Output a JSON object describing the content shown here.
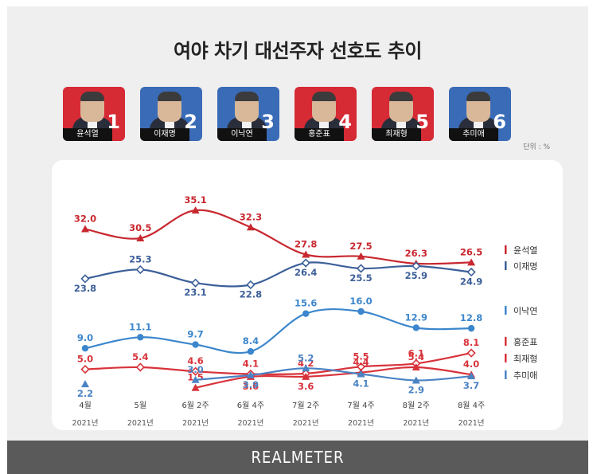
{
  "title": "여야 차기 대선주자 선호도 추이",
  "unit_label": "단위 : %",
  "footer": "REALMETER",
  "candidates": [
    {
      "rank": "1",
      "name": "윤석열",
      "color": "#d62a35"
    },
    {
      "rank": "2",
      "name": "이재명",
      "color": "#3a6bb7"
    },
    {
      "rank": "3",
      "name": "이낙연",
      "color": "#3a6bb7"
    },
    {
      "rank": "4",
      "name": "홍준표",
      "color": "#d62a35"
    },
    {
      "rank": "5",
      "name": "최재형",
      "color": "#d62a35"
    },
    {
      "rank": "6",
      "name": "추미애",
      "color": "#3a6bb7"
    }
  ],
  "chart_data": {
    "type": "line",
    "categories": [
      "4월",
      "5월",
      "6월 2주",
      "6월 4주",
      "7월 2주",
      "7월 4주",
      "8월 2주",
      "8월 4주"
    ],
    "category_years": [
      "2021년",
      "2021년",
      "2021년",
      "2021년",
      "2021년",
      "2021년",
      "2021년",
      "2021년"
    ],
    "series": [
      {
        "name": "윤석열",
        "color": "#c8282f",
        "values": [
          32.0,
          30.5,
          35.1,
          32.3,
          27.8,
          27.5,
          26.3,
          26.5
        ]
      },
      {
        "name": "이재명",
        "color": "#3c5f99",
        "values": [
          23.8,
          25.3,
          23.1,
          22.8,
          26.4,
          25.5,
          25.9,
          24.9
        ]
      },
      {
        "name": "이낙연",
        "color": "#3b86cc",
        "values": [
          9.0,
          11.1,
          9.7,
          8.4,
          15.6,
          16.0,
          12.9,
          12.8
        ]
      },
      {
        "name": "홍준표",
        "color": "#d8323a",
        "values": [
          5.0,
          5.4,
          4.6,
          4.1,
          4.2,
          5.5,
          6.1,
          8.1
        ]
      },
      {
        "name": "최재형",
        "color": "#d8323a",
        "values": [
          null,
          null,
          1.5,
          3.6,
          3.6,
          4.4,
          5.4,
          4.0
        ]
      },
      {
        "name": "추미애",
        "color": "#4a83c4",
        "values": [
          2.2,
          null,
          3.0,
          3.9,
          5.2,
          4.1,
          2.9,
          3.7
        ]
      }
    ],
    "legend_placement": "right",
    "grid": false
  }
}
